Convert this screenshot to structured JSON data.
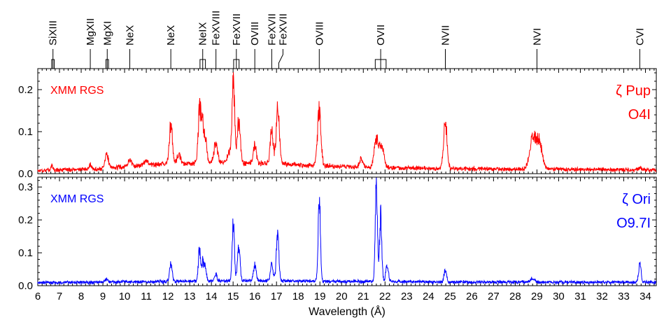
{
  "chart_data": {
    "type": "line",
    "xlabel": "Wavelength (Å)",
    "xlim": [
      6,
      34.5
    ],
    "x_ticks": [
      6,
      7,
      8,
      9,
      10,
      11,
      12,
      13,
      14,
      15,
      16,
      17,
      18,
      19,
      20,
      21,
      22,
      23,
      24,
      25,
      26,
      27,
      28,
      29,
      30,
      31,
      32,
      33,
      34
    ],
    "line_ids": [
      {
        "label": "SiXIII",
        "x": 6.7,
        "width": 0.12
      },
      {
        "label": "MgXII",
        "x": 8.42
      },
      {
        "label": "MgXI",
        "x": 9.2,
        "width": 0.12
      },
      {
        "label": "NeX",
        "x": 10.24
      },
      {
        "label": "NeX",
        "x": 12.13
      },
      {
        "label": "NeIX",
        "x": 13.6,
        "width": 0.25
      },
      {
        "label": "FeXVIII",
        "x": 14.21
      },
      {
        "label": "FeXVII",
        "x": 15.15,
        "width": 0.25
      },
      {
        "label": "OVIII",
        "x": 16.0
      },
      {
        "label": "FeXVII",
        "x": 16.78
      },
      {
        "label": "FeXVII",
        "x": 17.2,
        "angled": true
      },
      {
        "label": "OVIII",
        "x": 18.97
      },
      {
        "label": "OVII",
        "x": 21.8,
        "width": 0.5
      },
      {
        "label": "NVII",
        "x": 24.78
      },
      {
        "label": "NVI",
        "x": 29.0
      },
      {
        "label": "CVI",
        "x": 33.74
      }
    ],
    "panels": [
      {
        "instrument": "XMM RGS",
        "star": "ζ Pup",
        "spectral_type": "O4I",
        "color": "#ff0000",
        "ylim": [
          0,
          0.25
        ],
        "y_ticks": [
          0.0,
          0.1,
          0.2
        ],
        "y_tick_labels": [
          "0.0",
          "0.1",
          "0.2"
        ],
        "baseline": 0.005,
        "noise": 0.004,
        "continuum": [
          [
            6,
            0.003
          ],
          [
            9,
            0.006
          ],
          [
            10,
            0.012
          ],
          [
            12,
            0.018
          ],
          [
            14,
            0.022
          ],
          [
            16,
            0.02
          ],
          [
            18,
            0.016
          ],
          [
            20,
            0.012
          ],
          [
            23,
            0.008
          ],
          [
            27,
            0.006
          ],
          [
            31,
            0.005
          ],
          [
            34.5,
            0.004
          ]
        ],
        "lines": [
          {
            "x": 6.65,
            "a": 0.01,
            "w": 0.05
          },
          {
            "x": 8.42,
            "a": 0.01,
            "w": 0.06
          },
          {
            "x": 9.17,
            "a": 0.035,
            "w": 0.08
          },
          {
            "x": 10.24,
            "a": 0.015,
            "w": 0.08
          },
          {
            "x": 11.0,
            "a": 0.012,
            "w": 0.1
          },
          {
            "x": 12.13,
            "a": 0.095,
            "w": 0.07
          },
          {
            "x": 12.5,
            "a": 0.02,
            "w": 0.08
          },
          {
            "x": 13.45,
            "a": 0.12,
            "w": 0.06
          },
          {
            "x": 13.58,
            "a": 0.09,
            "w": 0.06
          },
          {
            "x": 13.72,
            "a": 0.06,
            "w": 0.06
          },
          {
            "x": 14.2,
            "a": 0.045,
            "w": 0.08
          },
          {
            "x": 14.8,
            "a": 0.025,
            "w": 0.08
          },
          {
            "x": 15.01,
            "a": 0.2,
            "w": 0.06
          },
          {
            "x": 15.26,
            "a": 0.1,
            "w": 0.07
          },
          {
            "x": 16.0,
            "a": 0.04,
            "w": 0.07
          },
          {
            "x": 16.78,
            "a": 0.08,
            "w": 0.07
          },
          {
            "x": 17.05,
            "a": 0.1,
            "w": 0.07
          },
          {
            "x": 17.1,
            "a": 0.03,
            "w": 0.08
          },
          {
            "x": 18.97,
            "a": 0.13,
            "w": 0.08
          },
          {
            "x": 20.9,
            "a": 0.02,
            "w": 0.08
          },
          {
            "x": 21.6,
            "a": 0.065,
            "w": 0.1
          },
          {
            "x": 21.85,
            "a": 0.05,
            "w": 0.1
          },
          {
            "x": 24.78,
            "a": 0.11,
            "w": 0.08
          },
          {
            "x": 28.8,
            "a": 0.07,
            "w": 0.14
          },
          {
            "x": 29.1,
            "a": 0.065,
            "w": 0.14
          },
          {
            "x": 33.74,
            "a": 0.004,
            "w": 0.08
          }
        ]
      },
      {
        "instrument": "XMM RGS",
        "star": "ζ Ori",
        "spectral_type": "O9.7I",
        "color": "#0000ff",
        "ylim": [
          0,
          0.33
        ],
        "y_ticks": [
          0.0,
          0.1,
          0.2,
          0.3
        ],
        "y_tick_labels": [
          "0.0",
          "0.1",
          "0.2",
          "0.3"
        ],
        "baseline": 0.005,
        "noise": 0.004,
        "continuum": [
          [
            6,
            0.004
          ],
          [
            12,
            0.008
          ],
          [
            16,
            0.01
          ],
          [
            20,
            0.008
          ],
          [
            26,
            0.006
          ],
          [
            34.5,
            0.005
          ]
        ],
        "lines": [
          {
            "x": 9.17,
            "a": 0.01,
            "w": 0.06
          },
          {
            "x": 12.13,
            "a": 0.055,
            "w": 0.06
          },
          {
            "x": 13.45,
            "a": 0.1,
            "w": 0.05
          },
          {
            "x": 13.6,
            "a": 0.06,
            "w": 0.05
          },
          {
            "x": 13.72,
            "a": 0.045,
            "w": 0.05
          },
          {
            "x": 14.2,
            "a": 0.02,
            "w": 0.06
          },
          {
            "x": 15.01,
            "a": 0.18,
            "w": 0.05
          },
          {
            "x": 15.26,
            "a": 0.1,
            "w": 0.06
          },
          {
            "x": 16.0,
            "a": 0.05,
            "w": 0.06
          },
          {
            "x": 16.78,
            "a": 0.05,
            "w": 0.06
          },
          {
            "x": 17.05,
            "a": 0.14,
            "w": 0.06
          },
          {
            "x": 18.97,
            "a": 0.27,
            "w": 0.05
          },
          {
            "x": 21.6,
            "a": 0.29,
            "w": 0.05
          },
          {
            "x": 21.8,
            "a": 0.2,
            "w": 0.05
          },
          {
            "x": 22.1,
            "a": 0.05,
            "w": 0.06
          },
          {
            "x": 24.78,
            "a": 0.035,
            "w": 0.06
          },
          {
            "x": 28.8,
            "a": 0.012,
            "w": 0.1
          },
          {
            "x": 33.74,
            "a": 0.05,
            "w": 0.06
          }
        ]
      }
    ]
  }
}
